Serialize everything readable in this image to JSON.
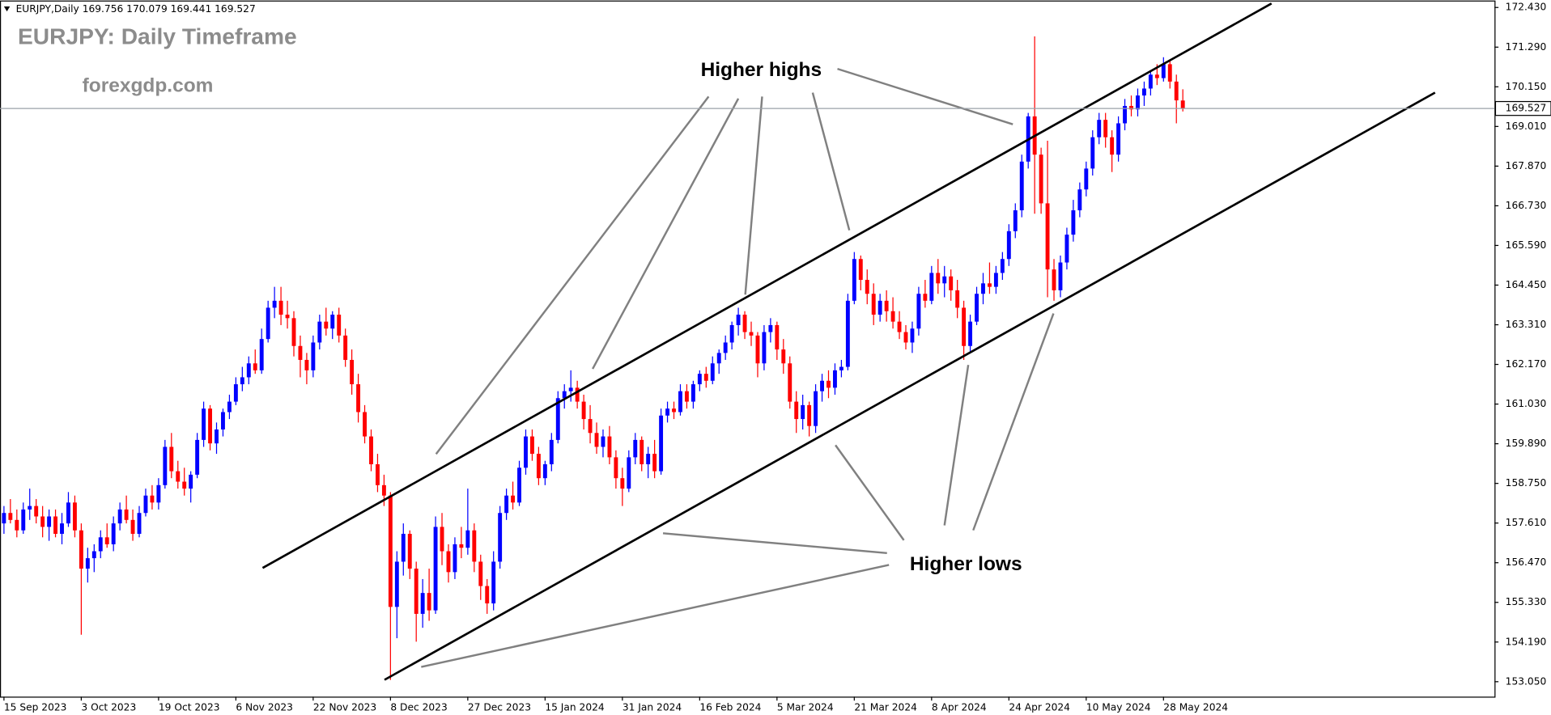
{
  "chart_data": {
    "type": "candlestick",
    "header": "EURJPY,Daily  169.756 170.079 169.441 169.527",
    "title": "EURJPY: Daily Timeframe",
    "watermark": "forexgdp.com",
    "annotations": [
      "Higher highs",
      "Higher lows"
    ],
    "up_color": "#0000ff",
    "down_color": "#ff0000",
    "current_price": {
      "value": 169.527,
      "label": "169.527"
    },
    "ylim": [
      152.62,
      172.63
    ],
    "yticks": [
      {
        "value": 172.43,
        "label": "172.430"
      },
      {
        "value": 171.29,
        "label": "171.290"
      },
      {
        "value": 170.15,
        "label": "170.150"
      },
      {
        "value": 169.01,
        "label": "169.010"
      },
      {
        "value": 167.87,
        "label": "167.870"
      },
      {
        "value": 166.73,
        "label": "166.730"
      },
      {
        "value": 165.59,
        "label": "165.590"
      },
      {
        "value": 164.45,
        "label": "164.450"
      },
      {
        "value": 163.31,
        "label": "163.310"
      },
      {
        "value": 162.17,
        "label": "162.170"
      },
      {
        "value": 161.03,
        "label": "161.030"
      },
      {
        "value": 159.89,
        "label": "159.890"
      },
      {
        "value": 158.75,
        "label": "158.750"
      },
      {
        "value": 157.61,
        "label": "157.610"
      },
      {
        "value": 156.47,
        "label": "156.470"
      },
      {
        "value": 155.33,
        "label": "155.330"
      },
      {
        "value": 154.19,
        "label": "154.190"
      },
      {
        "value": 153.05,
        "label": "153.050"
      }
    ],
    "categories": [
      "15 Sep 2023",
      null,
      null,
      null,
      null,
      null,
      null,
      null,
      null,
      null,
      null,
      null,
      "3 Oct 2023",
      null,
      null,
      null,
      null,
      null,
      null,
      null,
      null,
      null,
      null,
      null,
      "19 Oct 2023",
      null,
      null,
      null,
      null,
      null,
      null,
      null,
      null,
      null,
      null,
      null,
      "6 Nov 2023",
      null,
      null,
      null,
      null,
      null,
      null,
      null,
      null,
      null,
      null,
      null,
      "22 Nov 2023",
      null,
      null,
      null,
      null,
      null,
      null,
      null,
      null,
      null,
      null,
      null,
      "8 Dec 2023",
      null,
      null,
      null,
      null,
      null,
      null,
      null,
      null,
      null,
      null,
      null,
      "27 Dec 2023",
      null,
      null,
      null,
      null,
      null,
      null,
      null,
      null,
      null,
      null,
      null,
      "15 Jan 2024",
      null,
      null,
      null,
      null,
      null,
      null,
      null,
      null,
      null,
      null,
      null,
      "31 Jan 2024",
      null,
      null,
      null,
      null,
      null,
      null,
      null,
      null,
      null,
      null,
      null,
      "16 Feb 2024",
      null,
      null,
      null,
      null,
      null,
      null,
      null,
      null,
      null,
      null,
      null,
      "5 Mar 2024",
      null,
      null,
      null,
      null,
      null,
      null,
      null,
      null,
      null,
      null,
      null,
      "21 Mar 2024",
      null,
      null,
      null,
      null,
      null,
      null,
      null,
      null,
      null,
      null,
      null,
      "8 Apr 2024",
      null,
      null,
      null,
      null,
      null,
      null,
      null,
      null,
      null,
      null,
      null,
      "24 Apr 2024",
      null,
      null,
      null,
      null,
      null,
      null,
      null,
      null,
      null,
      null,
      null,
      "10 May 2024",
      null,
      null,
      null,
      null,
      null,
      null,
      null,
      null,
      null,
      null,
      null,
      "28 May 2024",
      null,
      null,
      null
    ],
    "ohlc": [
      [
        157.6,
        158.1,
        157.3,
        157.9
      ],
      [
        157.9,
        158.3,
        157.6,
        157.7
      ],
      [
        157.7,
        158.0,
        157.2,
        157.4
      ],
      [
        157.4,
        158.2,
        157.3,
        158.0
      ],
      [
        158.0,
        158.6,
        157.7,
        158.1
      ],
      [
        158.1,
        158.3,
        157.6,
        157.8
      ],
      [
        157.8,
        158.1,
        157.2,
        157.5
      ],
      [
        157.5,
        158.0,
        157.1,
        157.8
      ],
      [
        157.8,
        158.0,
        157.2,
        157.3
      ],
      [
        157.3,
        157.9,
        157.0,
        157.6
      ],
      [
        157.6,
        158.5,
        157.5,
        158.2
      ],
      [
        158.2,
        158.4,
        157.2,
        157.4
      ],
      [
        157.4,
        157.6,
        154.4,
        156.3
      ],
      [
        156.3,
        156.9,
        155.9,
        156.6
      ],
      [
        156.6,
        157.0,
        156.2,
        156.8
      ],
      [
        156.8,
        157.4,
        156.6,
        157.2
      ],
      [
        157.2,
        157.6,
        156.9,
        157.0
      ],
      [
        157.0,
        157.8,
        156.8,
        157.6
      ],
      [
        157.6,
        158.2,
        157.4,
        158.0
      ],
      [
        158.0,
        158.4,
        157.6,
        157.7
      ],
      [
        157.7,
        158.0,
        157.1,
        157.3
      ],
      [
        157.3,
        158.1,
        157.2,
        157.9
      ],
      [
        157.9,
        158.6,
        157.8,
        158.4
      ],
      [
        158.4,
        158.7,
        158.0,
        158.2
      ],
      [
        158.2,
        158.9,
        158.0,
        158.7
      ],
      [
        158.7,
        160.0,
        158.6,
        159.8
      ],
      [
        159.8,
        160.2,
        158.9,
        159.1
      ],
      [
        159.1,
        159.4,
        158.6,
        158.8
      ],
      [
        158.8,
        159.2,
        158.4,
        158.6
      ],
      [
        158.6,
        159.1,
        158.2,
        159.0
      ],
      [
        159.0,
        160.2,
        158.9,
        160.0
      ],
      [
        160.0,
        161.1,
        159.8,
        160.9
      ],
      [
        160.9,
        161.0,
        159.7,
        159.9
      ],
      [
        159.9,
        160.5,
        159.6,
        160.3
      ],
      [
        160.3,
        160.9,
        160.1,
        160.8
      ],
      [
        160.8,
        161.3,
        160.6,
        161.1
      ],
      [
        161.1,
        161.8,
        161.0,
        161.6
      ],
      [
        161.6,
        162.1,
        161.4,
        161.8
      ],
      [
        161.8,
        162.4,
        161.6,
        162.2
      ],
      [
        162.2,
        162.6,
        161.9,
        162.0
      ],
      [
        162.0,
        163.2,
        161.9,
        162.9
      ],
      [
        162.9,
        164.0,
        162.8,
        163.8
      ],
      [
        163.8,
        164.4,
        163.5,
        164.0
      ],
      [
        164.0,
        164.4,
        163.3,
        163.6
      ],
      [
        163.6,
        164.0,
        163.2,
        163.5
      ],
      [
        163.5,
        163.7,
        162.4,
        162.7
      ],
      [
        162.7,
        163.0,
        161.8,
        162.3
      ],
      [
        162.3,
        162.5,
        161.6,
        162.0
      ],
      [
        162.0,
        163.0,
        161.8,
        162.8
      ],
      [
        162.8,
        163.6,
        162.6,
        163.4
      ],
      [
        163.4,
        163.8,
        163.0,
        163.2
      ],
      [
        163.2,
        163.7,
        162.9,
        163.6
      ],
      [
        163.6,
        163.8,
        162.8,
        163.0
      ],
      [
        163.0,
        163.2,
        162.1,
        162.3
      ],
      [
        162.3,
        162.6,
        161.3,
        161.6
      ],
      [
        161.6,
        161.9,
        160.5,
        160.8
      ],
      [
        160.8,
        161.0,
        159.9,
        160.1
      ],
      [
        160.1,
        160.3,
        159.1,
        159.3
      ],
      [
        159.3,
        159.6,
        158.5,
        158.7
      ],
      [
        158.7,
        159.0,
        158.1,
        158.4
      ],
      [
        158.4,
        158.5,
        153.1,
        155.2
      ],
      [
        155.2,
        156.8,
        154.3,
        156.5
      ],
      [
        156.5,
        157.6,
        156.1,
        157.3
      ],
      [
        157.3,
        157.4,
        156.0,
        156.3
      ],
      [
        156.3,
        156.5,
        154.2,
        155.0
      ],
      [
        155.0,
        156.0,
        154.6,
        155.6
      ],
      [
        155.6,
        156.3,
        154.8,
        155.1
      ],
      [
        155.1,
        157.8,
        155.0,
        157.5
      ],
      [
        157.5,
        157.9,
        156.4,
        156.8
      ],
      [
        156.8,
        157.0,
        155.9,
        156.2
      ],
      [
        156.2,
        157.2,
        156.0,
        157.0
      ],
      [
        157.0,
        157.5,
        156.6,
        156.9
      ],
      [
        156.9,
        158.6,
        156.7,
        157.4
      ],
      [
        157.4,
        157.6,
        156.2,
        156.5
      ],
      [
        156.5,
        156.7,
        155.4,
        155.8
      ],
      [
        155.8,
        156.0,
        155.0,
        155.3
      ],
      [
        155.3,
        156.8,
        155.1,
        156.5
      ],
      [
        156.5,
        158.1,
        156.3,
        157.9
      ],
      [
        157.9,
        158.6,
        157.7,
        158.4
      ],
      [
        158.4,
        158.8,
        158.0,
        158.2
      ],
      [
        158.2,
        159.4,
        158.1,
        159.2
      ],
      [
        159.2,
        160.3,
        159.0,
        160.1
      ],
      [
        160.1,
        160.3,
        159.4,
        159.6
      ],
      [
        159.6,
        159.8,
        158.7,
        158.9
      ],
      [
        158.9,
        159.4,
        158.7,
        159.3
      ],
      [
        159.3,
        160.2,
        159.1,
        160.0
      ],
      [
        160.0,
        161.4,
        159.9,
        161.2
      ],
      [
        161.2,
        161.6,
        160.9,
        161.4
      ],
      [
        161.4,
        162.0,
        161.1,
        161.5
      ],
      [
        161.5,
        161.7,
        160.9,
        161.1
      ],
      [
        161.1,
        161.3,
        160.3,
        160.6
      ],
      [
        160.6,
        161.0,
        159.9,
        160.2
      ],
      [
        160.2,
        160.5,
        159.6,
        159.8
      ],
      [
        159.8,
        160.3,
        159.5,
        160.1
      ],
      [
        160.1,
        160.4,
        159.3,
        159.5
      ],
      [
        159.5,
        159.7,
        158.6,
        158.9
      ],
      [
        158.9,
        159.2,
        158.1,
        158.6
      ],
      [
        158.6,
        159.7,
        158.5,
        159.5
      ],
      [
        159.5,
        160.2,
        159.3,
        160.0
      ],
      [
        160.0,
        160.1,
        159.1,
        159.3
      ],
      [
        159.3,
        159.8,
        158.9,
        159.6
      ],
      [
        159.6,
        160.0,
        158.9,
        159.1
      ],
      [
        159.1,
        160.9,
        159.0,
        160.7
      ],
      [
        160.7,
        161.1,
        160.5,
        160.9
      ],
      [
        160.9,
        161.1,
        160.6,
        160.8
      ],
      [
        160.8,
        161.6,
        160.7,
        161.4
      ],
      [
        161.4,
        161.6,
        160.9,
        161.1
      ],
      [
        161.1,
        161.7,
        160.9,
        161.6
      ],
      [
        161.6,
        162.0,
        161.4,
        161.9
      ],
      [
        161.9,
        162.1,
        161.5,
        161.7
      ],
      [
        161.7,
        162.4,
        161.6,
        162.2
      ],
      [
        162.2,
        162.6,
        161.9,
        162.5
      ],
      [
        162.5,
        163.0,
        162.3,
        162.8
      ],
      [
        162.8,
        163.4,
        162.6,
        163.3
      ],
      [
        163.3,
        163.8,
        163.0,
        163.6
      ],
      [
        163.6,
        163.7,
        162.9,
        163.1
      ],
      [
        163.1,
        163.4,
        162.7,
        163.0
      ],
      [
        163.0,
        163.1,
        161.8,
        162.2
      ],
      [
        162.2,
        163.3,
        162.0,
        163.1
      ],
      [
        163.1,
        163.5,
        162.8,
        163.3
      ],
      [
        163.3,
        163.4,
        162.3,
        162.6
      ],
      [
        162.6,
        162.9,
        161.9,
        162.2
      ],
      [
        162.2,
        162.4,
        160.9,
        161.1
      ],
      [
        161.1,
        161.4,
        160.2,
        160.6
      ],
      [
        160.6,
        161.3,
        160.3,
        161.0
      ],
      [
        161.0,
        161.1,
        160.1,
        160.4
      ],
      [
        160.4,
        161.6,
        160.2,
        161.4
      ],
      [
        161.4,
        161.9,
        161.1,
        161.7
      ],
      [
        161.7,
        162.0,
        161.2,
        161.5
      ],
      [
        161.5,
        162.2,
        161.3,
        162.0
      ],
      [
        162.0,
        162.3,
        161.8,
        162.1
      ],
      [
        162.1,
        164.2,
        162.0,
        164.0
      ],
      [
        164.0,
        165.4,
        163.9,
        165.2
      ],
      [
        165.2,
        165.3,
        164.3,
        164.6
      ],
      [
        164.6,
        164.9,
        163.9,
        164.2
      ],
      [
        164.2,
        164.5,
        163.3,
        163.6
      ],
      [
        163.6,
        164.2,
        163.4,
        164.0
      ],
      [
        164.0,
        164.3,
        163.4,
        163.7
      ],
      [
        163.7,
        164.1,
        163.2,
        163.4
      ],
      [
        163.4,
        163.7,
        162.9,
        163.1
      ],
      [
        163.1,
        163.3,
        162.6,
        162.8
      ],
      [
        162.8,
        163.4,
        162.5,
        163.2
      ],
      [
        163.2,
        164.4,
        163.0,
        164.2
      ],
      [
        164.2,
        164.6,
        163.8,
        164.0
      ],
      [
        164.0,
        165.0,
        163.9,
        164.8
      ],
      [
        164.8,
        165.2,
        164.2,
        164.5
      ],
      [
        164.5,
        165.0,
        164.1,
        164.7
      ],
      [
        164.7,
        164.9,
        164.0,
        164.3
      ],
      [
        164.3,
        164.6,
        163.5,
        163.8
      ],
      [
        163.8,
        164.0,
        162.3,
        162.7
      ],
      [
        162.7,
        163.6,
        162.5,
        163.4
      ],
      [
        163.4,
        164.4,
        163.3,
        164.2
      ],
      [
        164.2,
        164.8,
        163.9,
        164.5
      ],
      [
        164.5,
        165.1,
        164.2,
        164.4
      ],
      [
        164.4,
        165.0,
        164.2,
        164.8
      ],
      [
        164.8,
        165.4,
        164.6,
        165.2
      ],
      [
        165.2,
        166.2,
        165.0,
        166.0
      ],
      [
        166.0,
        166.8,
        165.8,
        166.6
      ],
      [
        166.6,
        168.2,
        166.4,
        168.0
      ],
      [
        168.0,
        169.4,
        167.8,
        169.3
      ],
      [
        169.3,
        171.6,
        166.5,
        168.2
      ],
      [
        168.2,
        168.4,
        166.5,
        166.8
      ],
      [
        166.8,
        168.6,
        164.1,
        164.9
      ],
      [
        164.9,
        165.2,
        164.0,
        164.3
      ],
      [
        164.3,
        165.3,
        164.1,
        165.1
      ],
      [
        165.1,
        166.1,
        164.9,
        165.9
      ],
      [
        165.9,
        166.9,
        165.7,
        166.6
      ],
      [
        166.6,
        167.4,
        166.4,
        167.2
      ],
      [
        167.2,
        168.0,
        167.0,
        167.8
      ],
      [
        167.8,
        168.9,
        167.6,
        168.7
      ],
      [
        168.7,
        169.4,
        168.5,
        169.2
      ],
      [
        169.2,
        169.4,
        168.4,
        168.7
      ],
      [
        168.7,
        168.9,
        167.7,
        168.2
      ],
      [
        168.2,
        169.3,
        168.0,
        169.1
      ],
      [
        169.1,
        169.8,
        168.9,
        169.6
      ],
      [
        169.6,
        169.9,
        169.3,
        169.5
      ],
      [
        169.5,
        170.1,
        169.3,
        169.9
      ],
      [
        169.9,
        170.3,
        169.6,
        170.1
      ],
      [
        170.1,
        170.6,
        169.9,
        170.5
      ],
      [
        170.5,
        170.8,
        170.2,
        170.4
      ],
      [
        170.4,
        171.0,
        170.3,
        170.8
      ],
      [
        170.8,
        170.9,
        170.1,
        170.3
      ],
      [
        170.3,
        170.5,
        169.1,
        169.76
      ],
      [
        169.756,
        170.079,
        169.441,
        169.527
      ]
    ]
  }
}
